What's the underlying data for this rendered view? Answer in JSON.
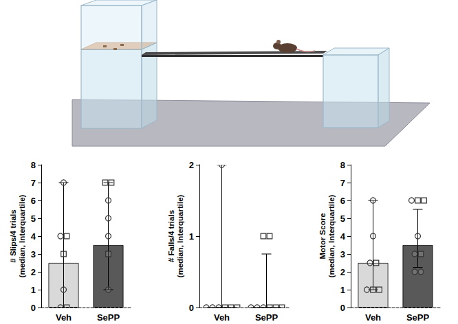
{
  "chart_data": [
    {
      "type": "bar",
      "ylabel": "# Slips/4 trials (median, Interquartile)",
      "categories": [
        "Veh",
        "SePP"
      ],
      "values": [
        2.5,
        3.5
      ],
      "colors": [
        "#d9d9d9",
        "#595959"
      ],
      "error_low": [
        0,
        1
      ],
      "error_high": [
        7,
        7
      ],
      "points": [
        {
          "marker": "circle",
          "values": [
            [
              7,
              4,
              1,
              0
            ],
            [
              6,
              5,
              4,
              1
            ]
          ]
        },
        {
          "marker": "square",
          "values": [
            [
              4,
              3,
              0
            ],
            [
              7,
              7,
              3
            ]
          ]
        }
      ],
      "ylim": [
        0,
        8
      ],
      "yticks": [
        0,
        1,
        2,
        3,
        4,
        5,
        6,
        7,
        8
      ],
      "grid": false
    },
    {
      "type": "bar",
      "ylabel": "# Falls/4 trials (median, Interquartile)",
      "categories": [
        "Veh",
        "SePP"
      ],
      "values": [
        0,
        0
      ],
      "colors": [
        "#d9d9d9",
        "#595959"
      ],
      "error_low": [
        0,
        0
      ],
      "error_high": [
        2,
        0.75
      ],
      "points": [
        {
          "marker": "circle",
          "values": [
            [
              2,
              0,
              0,
              0
            ],
            [
              0,
              0,
              0
            ]
          ]
        },
        {
          "marker": "square",
          "values": [
            [
              0,
              0,
              0
            ],
            [
              1,
              1,
              0,
              0,
              0
            ]
          ]
        }
      ],
      "ylim": [
        0,
        2
      ],
      "yticks": [
        0,
        1,
        2
      ],
      "grid": false
    },
    {
      "type": "bar",
      "ylabel": "Motor Score (median, Interquartile)",
      "categories": [
        "Veh",
        "SePP"
      ],
      "values": [
        2.5,
        3.5
      ],
      "colors": [
        "#d9d9d9",
        "#595959"
      ],
      "error_low": [
        1,
        2.25
      ],
      "error_high": [
        6,
        5.5
      ],
      "points": [
        {
          "marker": "circle",
          "values": [
            [
              6,
              4,
              2.5,
              1
            ],
            [
              6,
              4,
              3,
              2,
              2
            ]
          ]
        },
        {
          "marker": "square",
          "values": [
            [
              2.5,
              1,
              1
            ],
            [
              6,
              6,
              3
            ]
          ]
        }
      ],
      "ylim": [
        0,
        8
      ],
      "yticks": [
        0,
        1,
        2,
        3,
        4,
        5,
        6,
        7,
        8
      ],
      "grid": false
    }
  ]
}
